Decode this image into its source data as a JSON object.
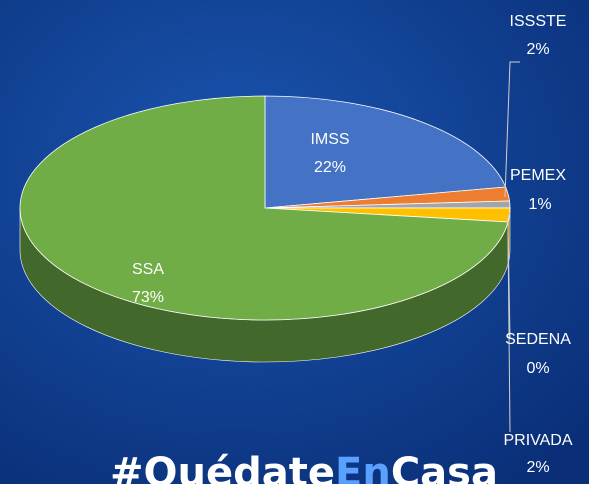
{
  "chart_data": {
    "type": "pie3d",
    "categories": [
      "IMSS",
      "ISSSTE",
      "PEMEX",
      "SEDENA",
      "PRIVADA",
      "SSA"
    ],
    "values": [
      22,
      2,
      1,
      0,
      2,
      73
    ],
    "value_labels": [
      "22%",
      "2%",
      "1%",
      "0%",
      "2%",
      "73%"
    ],
    "colors": [
      "#4472c4",
      "#ed7d31",
      "#a5a5a5",
      "#5b9bd5",
      "#ffc000",
      "#70ad47"
    ],
    "footer": [
      "#Quédate",
      "En",
      "Casa"
    ]
  }
}
